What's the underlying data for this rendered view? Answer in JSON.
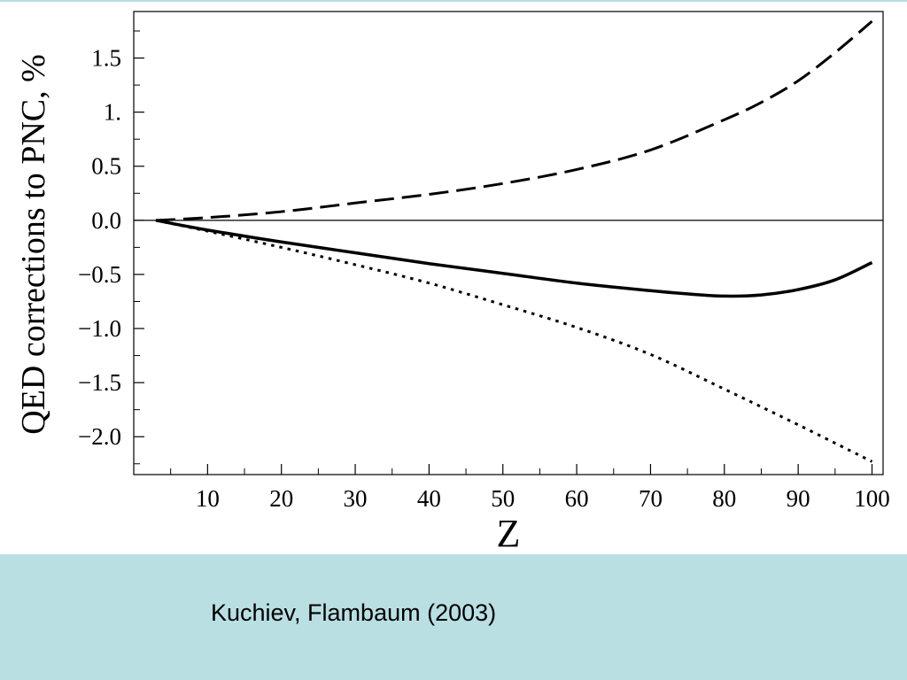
{
  "slide": {
    "caption": "Kuchiev, Flambaum (2003)",
    "band_color": "#badfe3"
  },
  "chart_data": {
    "type": "line",
    "title": "",
    "xlabel": "Z",
    "ylabel": "QED corrections to PNC, %",
    "xlim": [
      0,
      101.5
    ],
    "ylim": [
      -2.35,
      1.93
    ],
    "x_ticks": [
      10,
      20,
      30,
      40,
      50,
      60,
      70,
      80,
      90,
      100
    ],
    "x_tick_labels": [
      "10",
      "20",
      "30",
      "40",
      "50",
      "60",
      "70",
      "80",
      "90",
      "100"
    ],
    "y_ticks": [
      1.5,
      1.0,
      0.5,
      0.0,
      -0.5,
      -1.0,
      -1.5,
      -2.0
    ],
    "y_tick_labels": [
      "1.5",
      "1.",
      "0.5",
      "0.0",
      "−0.5",
      "−1.0",
      "−1.5",
      "−2.0"
    ],
    "zero_line": true,
    "grid": false,
    "legend": "none",
    "series": [
      {
        "style": "dashed",
        "color": "#000000",
        "x": [
          3,
          10,
          20,
          30,
          40,
          50,
          60,
          70,
          80,
          85,
          90,
          95,
          100
        ],
        "y": [
          0.0,
          0.025,
          0.08,
          0.16,
          0.24,
          0.34,
          0.47,
          0.65,
          0.93,
          1.09,
          1.29,
          1.55,
          1.84
        ]
      },
      {
        "style": "solid",
        "color": "#000000",
        "x": [
          3,
          10,
          20,
          30,
          40,
          50,
          60,
          70,
          75,
          80,
          85,
          90,
          95,
          100
        ],
        "y": [
          0.0,
          -0.09,
          -0.2,
          -0.3,
          -0.4,
          -0.49,
          -0.58,
          -0.65,
          -0.68,
          -0.7,
          -0.69,
          -0.64,
          -0.55,
          -0.39
        ]
      },
      {
        "style": "dotted",
        "color": "#000000",
        "x": [
          3,
          10,
          20,
          30,
          40,
          50,
          60,
          70,
          80,
          90,
          100
        ],
        "y": [
          0.0,
          -0.1,
          -0.25,
          -0.41,
          -0.58,
          -0.78,
          -0.99,
          -1.24,
          -1.56,
          -1.89,
          -2.23
        ]
      }
    ]
  }
}
